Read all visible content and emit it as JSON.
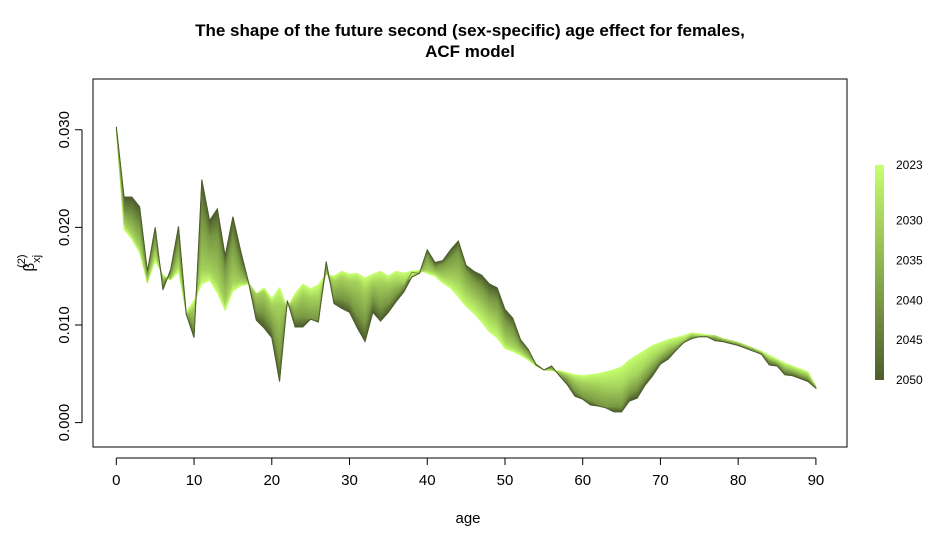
{
  "chart_data": {
    "type": "line",
    "title_line1": "The shape of the future second (sex-specific) age effect for females,",
    "title_line2": "ACF model",
    "xlabel": "age",
    "ylabel_base": "β",
    "ylabel_sub": "xj",
    "ylabel_sup": "(2)",
    "xlim": [
      -3,
      94
    ],
    "ylim": [
      -0.0025,
      0.0352
    ],
    "x_ticks": [
      0,
      10,
      20,
      30,
      40,
      50,
      60,
      70,
      80,
      90
    ],
    "y_ticks": [
      0.0,
      0.01,
      0.02,
      0.03
    ],
    "y_tick_labels": [
      "0.000",
      "0.010",
      "0.020",
      "0.030"
    ],
    "ages": [
      0,
      1,
      2,
      3,
      4,
      5,
      6,
      7,
      8,
      9,
      10,
      11,
      12,
      13,
      14,
      15,
      16,
      17,
      18,
      19,
      20,
      21,
      22,
      23,
      24,
      25,
      26,
      27,
      28,
      29,
      30,
      31,
      32,
      33,
      34,
      35,
      36,
      37,
      38,
      39,
      40,
      41,
      42,
      43,
      44,
      45,
      46,
      47,
      48,
      49,
      50,
      51,
      52,
      53,
      54,
      55,
      56,
      57,
      58,
      59,
      60,
      61,
      62,
      63,
      64,
      65,
      66,
      67,
      68,
      69,
      70,
      71,
      72,
      73,
      74,
      75,
      76,
      77,
      78,
      79,
      80,
      81,
      82,
      83,
      84,
      85,
      86,
      87,
      88,
      89,
      90
    ],
    "series": [
      {
        "name": "2023",
        "values": [
          0.0299,
          0.0198,
          0.0188,
          0.0174,
          0.0143,
          0.0166,
          0.0151,
          0.0146,
          0.0155,
          0.0113,
          0.0125,
          0.0142,
          0.0146,
          0.0133,
          0.0115,
          0.0135,
          0.014,
          0.0142,
          0.0132,
          0.0138,
          0.0127,
          0.0138,
          0.0118,
          0.0132,
          0.0142,
          0.0137,
          0.0141,
          0.0152,
          0.015,
          0.0155,
          0.0152,
          0.0153,
          0.0148,
          0.0152,
          0.0155,
          0.015,
          0.0155,
          0.0153,
          0.0155,
          0.0156,
          0.0153,
          0.015,
          0.0143,
          0.0138,
          0.0129,
          0.0119,
          0.0112,
          0.0103,
          0.0093,
          0.0087,
          0.0076,
          0.0073,
          0.0069,
          0.0064,
          0.0058,
          0.0054,
          0.0053,
          0.0053,
          0.0051,
          0.0049,
          0.0048,
          0.0049,
          0.005,
          0.0052,
          0.0054,
          0.0057,
          0.0064,
          0.0069,
          0.0074,
          0.0079,
          0.0082,
          0.0085,
          0.0087,
          0.0089,
          0.0092,
          0.0091,
          0.009,
          0.0089,
          0.0086,
          0.0084,
          0.0082,
          0.0079,
          0.0076,
          0.0073,
          0.0069,
          0.0065,
          0.0061,
          0.0058,
          0.0055,
          0.0052,
          0.0037
        ]
      },
      {
        "name": "2030",
        "values": [
          0.03,
          0.0203,
          0.0193,
          0.0179,
          0.0145,
          0.0172,
          0.0149,
          0.0147,
          0.0162,
          0.0112,
          0.0117,
          0.0156,
          0.0155,
          0.0145,
          0.0122,
          0.0144,
          0.0144,
          0.0143,
          0.0132,
          0.0134,
          0.0121,
          0.012,
          0.0121,
          0.0124,
          0.0132,
          0.0128,
          0.0128,
          0.0153,
          0.0145,
          0.0149,
          0.0145,
          0.0145,
          0.0136,
          0.0144,
          0.0144,
          0.0143,
          0.0145,
          0.0144,
          0.0149,
          0.0154,
          0.0156,
          0.0153,
          0.0149,
          0.0148,
          0.0144,
          0.0133,
          0.0126,
          0.0118,
          0.0108,
          0.0101,
          0.0083,
          0.0078,
          0.0073,
          0.0066,
          0.0059,
          0.0054,
          0.0054,
          0.0052,
          0.0049,
          0.0044,
          0.0041,
          0.004,
          0.0039,
          0.0037,
          0.0036,
          0.0037,
          0.0045,
          0.005,
          0.0058,
          0.0066,
          0.0072,
          0.0078,
          0.0081,
          0.0085,
          0.009,
          0.0089,
          0.0089,
          0.0089,
          0.0086,
          0.0084,
          0.0082,
          0.0079,
          0.0076,
          0.0072,
          0.0066,
          0.0063,
          0.0058,
          0.0055,
          0.0052,
          0.0049,
          0.0037
        ]
      },
      {
        "name": "2040",
        "values": [
          0.0302,
          0.0216,
          0.0212,
          0.0202,
          0.0151,
          0.0189,
          0.0143,
          0.0152,
          0.0183,
          0.0111,
          0.0098,
          0.0209,
          0.0189,
          0.0192,
          0.0154,
          0.0187,
          0.016,
          0.0144,
          0.0115,
          0.0112,
          0.0099,
          0.0065,
          0.0123,
          0.0108,
          0.0109,
          0.0106,
          0.0106,
          0.0159,
          0.0128,
          0.0128,
          0.0124,
          0.0112,
          0.0103,
          0.0127,
          0.0118,
          0.0123,
          0.0131,
          0.0139,
          0.0154,
          0.0153,
          0.0171,
          0.0159,
          0.0162,
          0.0168,
          0.0175,
          0.0155,
          0.0145,
          0.0138,
          0.0128,
          0.0124,
          0.0104,
          0.0096,
          0.008,
          0.0072,
          0.006,
          0.0054,
          0.0056,
          0.0049,
          0.0043,
          0.0033,
          0.0026,
          0.0023,
          0.0019,
          0.0016,
          0.0017,
          0.0017,
          0.003,
          0.0035,
          0.0045,
          0.0055,
          0.0064,
          0.007,
          0.0076,
          0.0082,
          0.0087,
          0.0088,
          0.0088,
          0.0086,
          0.0084,
          0.0082,
          0.008,
          0.0077,
          0.0074,
          0.0071,
          0.0063,
          0.006,
          0.0053,
          0.0051,
          0.0048,
          0.0045,
          0.0036
        ]
      },
      {
        "name": "2050",
        "values": [
          0.0303,
          0.0231,
          0.0231,
          0.0221,
          0.0155,
          0.02,
          0.0136,
          0.0157,
          0.0201,
          0.0111,
          0.0087,
          0.0249,
          0.0207,
          0.0219,
          0.0171,
          0.0211,
          0.0176,
          0.0144,
          0.0105,
          0.0097,
          0.0087,
          0.0042,
          0.0125,
          0.0098,
          0.0098,
          0.0106,
          0.0103,
          0.0165,
          0.0122,
          0.0117,
          0.0113,
          0.0097,
          0.0083,
          0.0113,
          0.0104,
          0.0113,
          0.0124,
          0.0134,
          0.0149,
          0.0153,
          0.0177,
          0.0164,
          0.0166,
          0.0177,
          0.0186,
          0.0161,
          0.0155,
          0.0151,
          0.0142,
          0.0138,
          0.0116,
          0.0107,
          0.0085,
          0.0075,
          0.0059,
          0.0054,
          0.0058,
          0.0048,
          0.0039,
          0.0027,
          0.0024,
          0.0018,
          0.0017,
          0.0015,
          0.0011,
          0.0011,
          0.0022,
          0.0025,
          0.0038,
          0.0048,
          0.006,
          0.0065,
          0.0074,
          0.0082,
          0.0086,
          0.0088,
          0.0088,
          0.0084,
          0.0083,
          0.0081,
          0.0079,
          0.0076,
          0.0073,
          0.007,
          0.0059,
          0.0058,
          0.0049,
          0.0048,
          0.0045,
          0.0042,
          0.0035
        ]
      }
    ],
    "projection_years": [
      2023,
      2050
    ],
    "legend": {
      "position": "right",
      "labels": [
        "2023",
        "2030",
        "2035",
        "2040",
        "2045",
        "2050"
      ],
      "label_years": [
        2023,
        2030,
        2035,
        2040,
        2045,
        2050
      ],
      "color_start": "#c6ff6e",
      "color_end": "#4e5e2c"
    },
    "grid": false
  }
}
